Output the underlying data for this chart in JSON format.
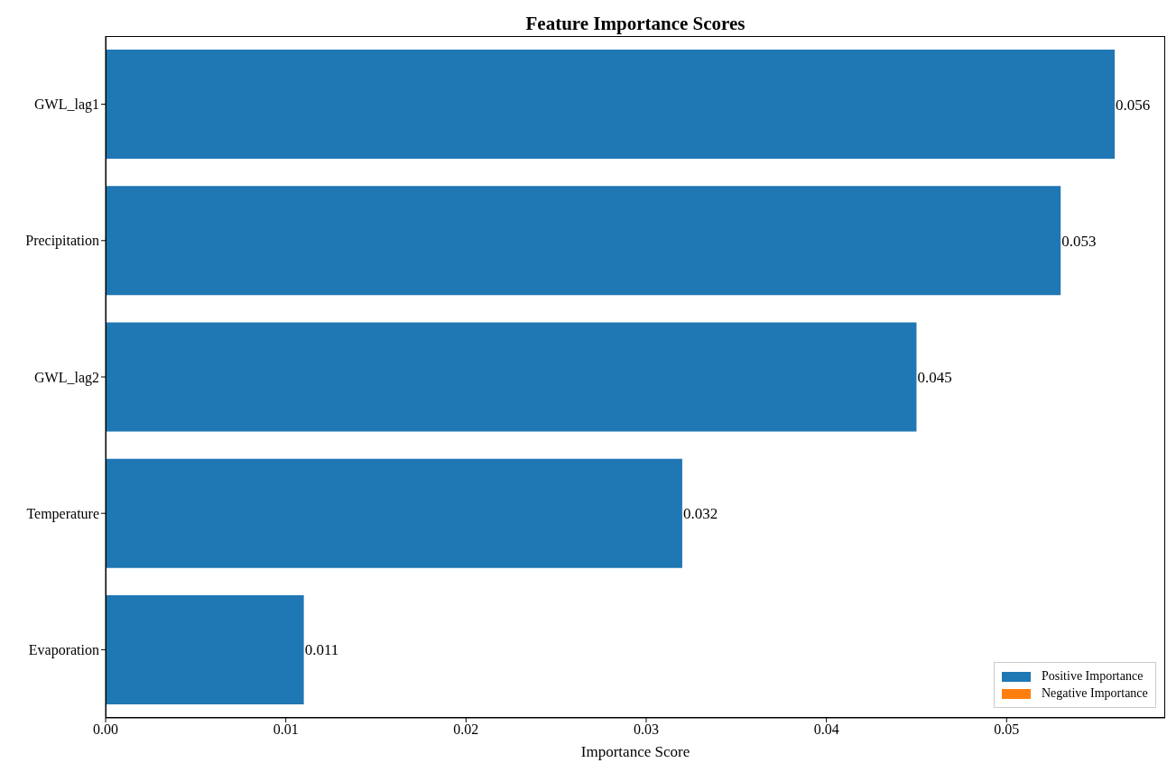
{
  "chart_data": {
    "type": "bar",
    "orientation": "horizontal",
    "title": "Feature Importance Scores",
    "xlabel": "Importance Score",
    "categories": [
      "GWL_lag1",
      "Precipitation",
      "GWL_lag2",
      "Temperature",
      "Evaporation"
    ],
    "series": [
      {
        "name": "Positive Importance",
        "color": "#1f77b4",
        "values": [
          0.056,
          0.053,
          0.045,
          0.032,
          0.011
        ]
      },
      {
        "name": "Negative Importance",
        "color": "#ff7f0e",
        "values": [
          null,
          null,
          null,
          null,
          null
        ]
      }
    ],
    "xlim": [
      0,
      0.0588
    ],
    "xticks": [
      {
        "value": 0,
        "label": "0.00"
      },
      0.01,
      0.02,
      0.03,
      0.04,
      0.05
    ],
    "data_labels": true,
    "legend": "bottom right",
    "grid": false
  }
}
